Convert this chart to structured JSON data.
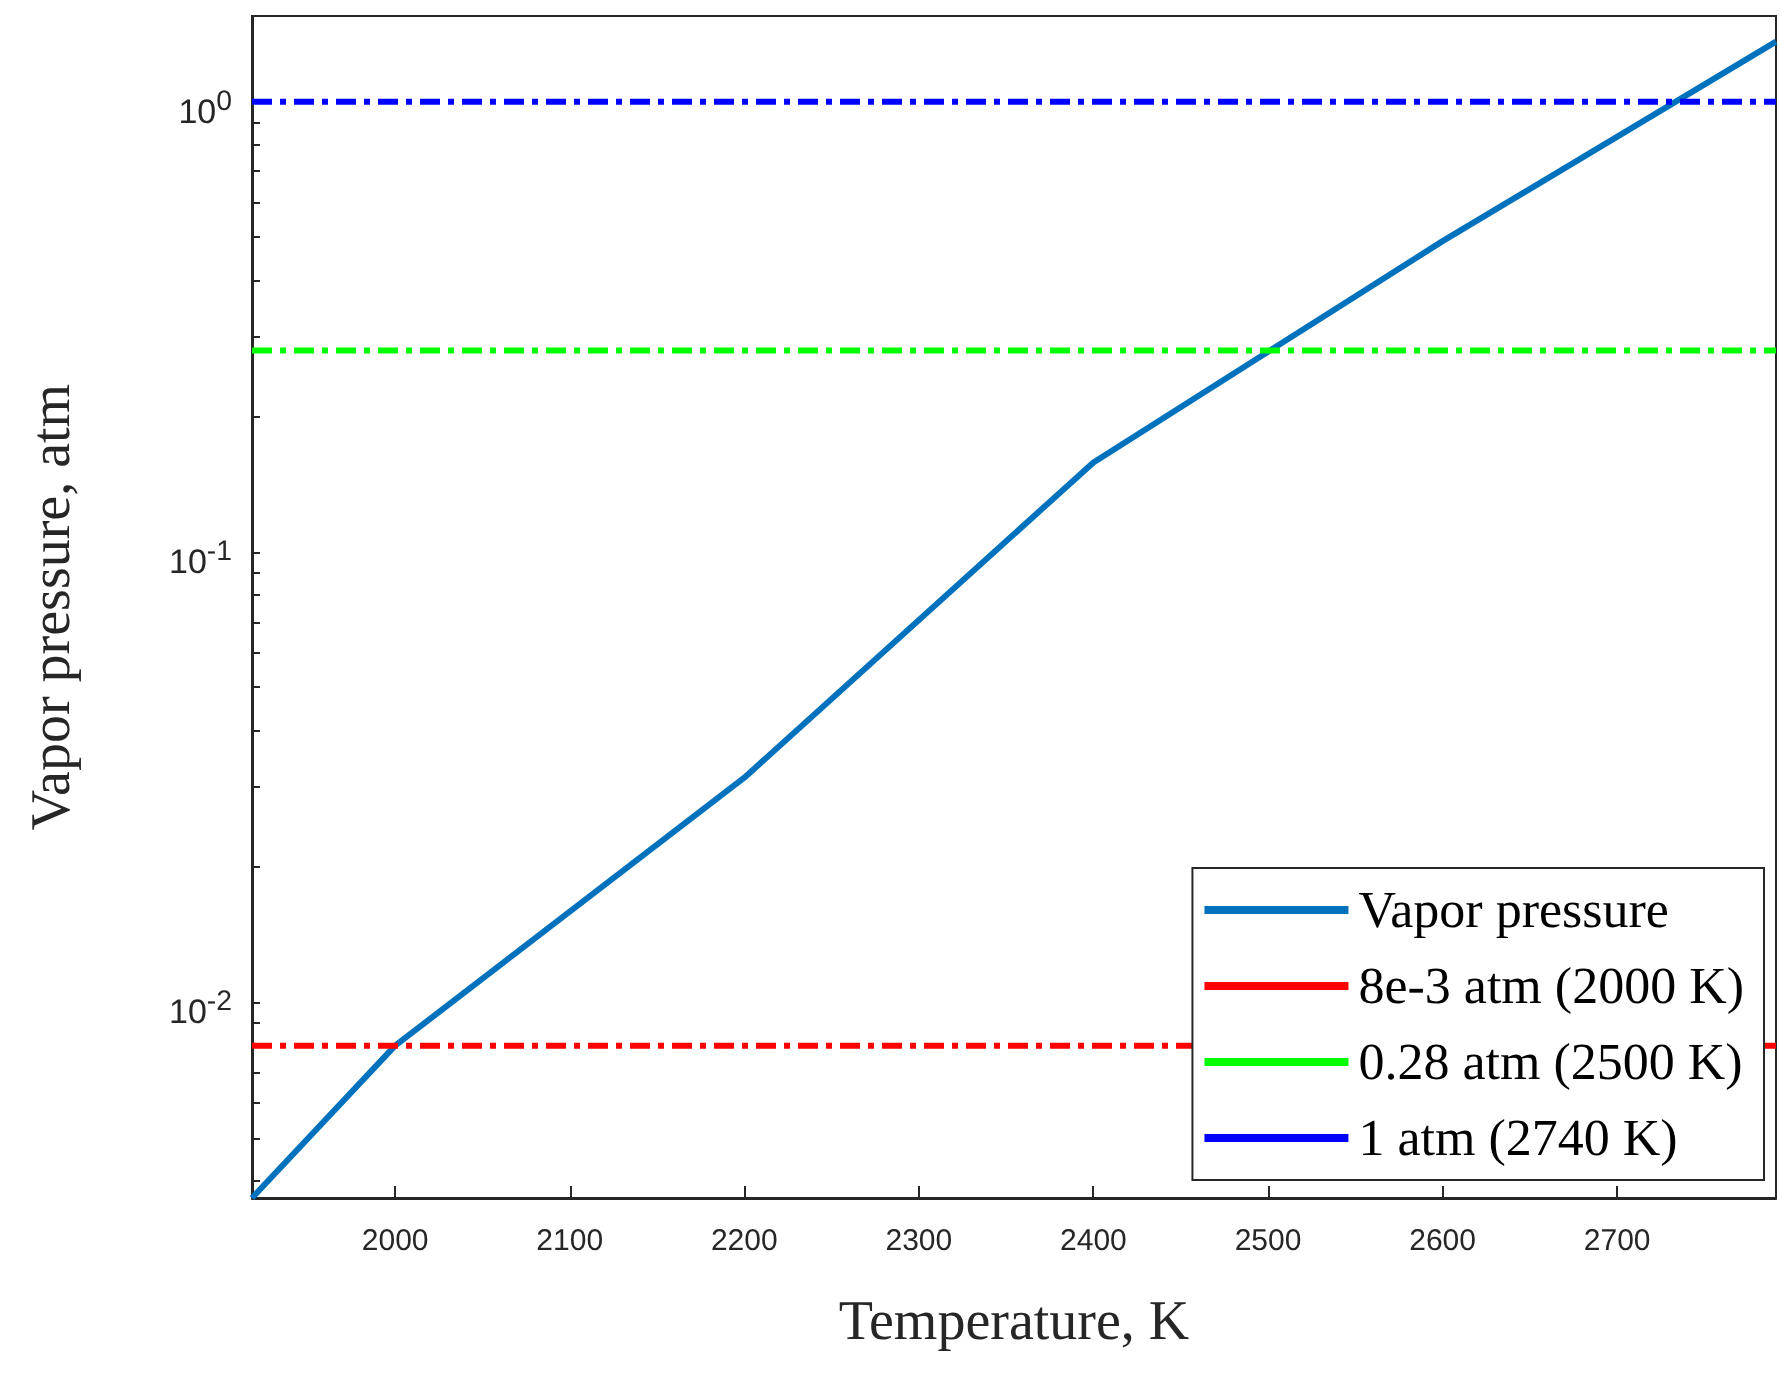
{
  "chart_data": {
    "type": "line",
    "xlabel": "Temperature, K",
    "ylabel": "Vapor pressure, atm",
    "log": "y",
    "grid": false,
    "legend": "bottom right",
    "marker": "none",
    "xlim": [
      1918,
      2791
    ],
    "xticks": [
      2000,
      2100,
      2200,
      2300,
      2400,
      2500,
      2600,
      2700
    ],
    "ylim": [
      0.00367,
      1.55
    ],
    "yticks": [
      {
        "value": 0.004,
        "label": null
      },
      {
        "value": 0.005,
        "label": null
      },
      {
        "value": 0.006,
        "label": null
      },
      {
        "value": 0.007,
        "label": null
      },
      {
        "value": 0.008,
        "label": null
      },
      {
        "value": 0.009,
        "label": null
      },
      {
        "value": 0.01,
        "label": "10$^{-2}$"
      },
      {
        "value": 0.02,
        "label": null
      },
      {
        "value": 0.03,
        "label": null
      },
      {
        "value": 0.04,
        "label": null
      },
      {
        "value": 0.05,
        "label": null
      },
      {
        "value": 0.06,
        "label": null
      },
      {
        "value": 0.07,
        "label": null
      },
      {
        "value": 0.08,
        "label": null
      },
      {
        "value": 0.09,
        "label": null
      },
      {
        "value": 0.1,
        "label": "10$^{-1}$"
      },
      {
        "value": 0.2,
        "label": null
      },
      {
        "value": 0.3,
        "label": null
      },
      {
        "value": 0.4,
        "label": null
      },
      {
        "value": 0.5,
        "label": null
      },
      {
        "value": 0.6,
        "label": null
      },
      {
        "value": 0.7,
        "label": null
      },
      {
        "value": 0.8,
        "label": null
      },
      {
        "value": 0.9,
        "label": null
      },
      {
        "value": 1,
        "label": "10$^{0}$"
      }
    ],
    "series": [
      {
        "name": "Vapor pressure",
        "color": "#0072bd",
        "line_style": "solid",
        "x": [
          1918,
          2000,
          2200,
          2400,
          2600,
          2791
        ],
        "values": [
          0.00367,
          0.008,
          0.0315,
          0.158,
          0.49,
          1.36
        ]
      },
      {
        "name": "8e-3 atm (2000 K)",
        "color": "#ff0000",
        "line_style": "dashed",
        "x": [
          1918,
          2791
        ],
        "values": [
          0.008,
          0.008
        ]
      },
      {
        "name": "0.28 atm (2500 K)",
        "color": "#00ff00",
        "line_style": "dashed",
        "x": [
          1918,
          2791
        ],
        "values": [
          0.28,
          0.28
        ]
      },
      {
        "name": "1 atm (2740 K)",
        "color": "#0000ff",
        "line_style": "dashed",
        "x": [
          1918,
          2791
        ],
        "values": [
          1,
          1
        ]
      }
    ]
  }
}
